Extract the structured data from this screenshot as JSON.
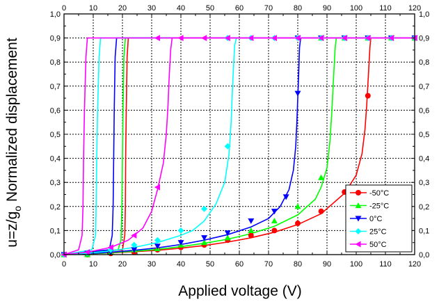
{
  "chart_data": {
    "type": "line",
    "title": "",
    "xlabel": "Applied voltage (V)",
    "ylabel": "u=z/g0 Normalized displacement",
    "ylabel_parts": {
      "prefix": "u=z/g",
      "subscript": "o",
      "suffix": " Normalized displacement"
    },
    "xlim": [
      0,
      120
    ],
    "ylim": [
      0,
      1.0
    ],
    "x_ticks": [
      "0",
      "10",
      "20",
      "30",
      "40",
      "50",
      "60",
      "70",
      "80",
      "90",
      "100",
      "110",
      "120"
    ],
    "y_ticks": [
      "0,0",
      "0,1",
      "0,2",
      "0,3",
      "0,4",
      "0,5",
      "0,6",
      "0,7",
      "0,8",
      "0,9",
      "1,0"
    ],
    "grid": true,
    "legend_position": "bottom-right",
    "series": [
      {
        "name": "-50°C",
        "color": "#ff0000",
        "marker": "circle",
        "forward": [
          [
            0,
            0
          ],
          [
            8,
            0.003
          ],
          [
            16,
            0.007
          ],
          [
            24,
            0.012
          ],
          [
            32,
            0.018
          ],
          [
            40,
            0.027
          ],
          [
            48,
            0.038
          ],
          [
            56,
            0.052
          ],
          [
            64,
            0.07
          ],
          [
            72,
            0.093
          ],
          [
            80,
            0.125
          ],
          [
            88,
            0.17
          ],
          [
            96,
            0.255
          ],
          [
            100,
            0.33
          ],
          [
            102,
            0.42
          ],
          [
            103,
            0.52
          ],
          [
            103.6,
            0.62
          ],
          [
            104.2,
            0.75
          ],
          [
            104.7,
            0.86
          ],
          [
            105,
            0.9
          ],
          [
            120,
            0.9
          ]
        ],
        "backward": [
          [
            120,
            0.9
          ],
          [
            22,
            0.9
          ],
          [
            21.6,
            0.82
          ],
          [
            21.3,
            0.6
          ],
          [
            21.1,
            0.4
          ],
          [
            21,
            0.2
          ],
          [
            20.8,
            0.08
          ],
          [
            20,
            0.02
          ],
          [
            0,
            0
          ]
        ],
        "markers": [
          [
            0,
            0
          ],
          [
            8,
            0
          ],
          [
            16,
            0.005
          ],
          [
            24,
            0.01
          ],
          [
            32,
            0.02
          ],
          [
            40,
            0.03
          ],
          [
            48,
            0.04
          ],
          [
            56,
            0.06
          ],
          [
            64,
            0.08
          ],
          [
            72,
            0.1
          ],
          [
            80,
            0.13
          ],
          [
            88,
            0.18
          ],
          [
            96,
            0.26
          ],
          [
            104,
            0.66
          ],
          [
            104,
            0.9
          ],
          [
            112,
            0.9
          ],
          [
            120,
            0.9
          ]
        ]
      },
      {
        "name": "-25°C",
        "color": "#00ff00",
        "marker": "triangle-up",
        "forward": [
          [
            0,
            0
          ],
          [
            8,
            0.003
          ],
          [
            16,
            0.008
          ],
          [
            24,
            0.014
          ],
          [
            32,
            0.022
          ],
          [
            40,
            0.033
          ],
          [
            48,
            0.047
          ],
          [
            56,
            0.064
          ],
          [
            64,
            0.087
          ],
          [
            72,
            0.118
          ],
          [
            80,
            0.165
          ],
          [
            86,
            0.23
          ],
          [
            88,
            0.28
          ],
          [
            90,
            0.36
          ],
          [
            91,
            0.47
          ],
          [
            91.7,
            0.6
          ],
          [
            92.3,
            0.75
          ],
          [
            92.8,
            0.86
          ],
          [
            93.2,
            0.9
          ],
          [
            120,
            0.9
          ]
        ],
        "backward": [
          [
            120,
            0.9
          ],
          [
            21,
            0.9
          ],
          [
            20.5,
            0.82
          ],
          [
            20.2,
            0.6
          ],
          [
            20,
            0.4
          ],
          [
            19.8,
            0.2
          ],
          [
            19.5,
            0.06
          ],
          [
            18.5,
            0.02
          ],
          [
            0,
            0
          ]
        ],
        "markers": [
          [
            0,
            0
          ],
          [
            8,
            0
          ],
          [
            16,
            0.01
          ],
          [
            24,
            0.02
          ],
          [
            32,
            0.025
          ],
          [
            40,
            0.04
          ],
          [
            48,
            0.05
          ],
          [
            56,
            0.07
          ],
          [
            64,
            0.1
          ],
          [
            72,
            0.14
          ],
          [
            80,
            0.2
          ],
          [
            88,
            0.32
          ],
          [
            88,
            0.9
          ],
          [
            96,
            0.9
          ],
          [
            104,
            0.9
          ],
          [
            112,
            0.9
          ],
          [
            120,
            0.9
          ]
        ]
      },
      {
        "name": "0°C",
        "color": "#0000ff",
        "marker": "triangle-down",
        "forward": [
          [
            0,
            0
          ],
          [
            8,
            0.004
          ],
          [
            16,
            0.01
          ],
          [
            24,
            0.018
          ],
          [
            32,
            0.028
          ],
          [
            40,
            0.042
          ],
          [
            48,
            0.06
          ],
          [
            56,
            0.083
          ],
          [
            64,
            0.115
          ],
          [
            70,
            0.15
          ],
          [
            74,
            0.2
          ],
          [
            77,
            0.27
          ],
          [
            78.5,
            0.35
          ],
          [
            79.3,
            0.45
          ],
          [
            79.7,
            0.55
          ],
          [
            80,
            0.65
          ],
          [
            80.3,
            0.75
          ],
          [
            80.6,
            0.86
          ],
          [
            81,
            0.9
          ],
          [
            120,
            0.9
          ]
        ],
        "backward": [
          [
            120,
            0.9
          ],
          [
            18,
            0.9
          ],
          [
            17.5,
            0.82
          ],
          [
            17.2,
            0.6
          ],
          [
            17,
            0.4
          ],
          [
            16.8,
            0.2
          ],
          [
            16.5,
            0.08
          ],
          [
            15.5,
            0.02
          ],
          [
            0,
            0
          ]
        ],
        "markers": [
          [
            0,
            0
          ],
          [
            8,
            0.005
          ],
          [
            16,
            0.01
          ],
          [
            24,
            0.02
          ],
          [
            32,
            0.035
          ],
          [
            40,
            0.05
          ],
          [
            48,
            0.07
          ],
          [
            56,
            0.09
          ],
          [
            64,
            0.14
          ],
          [
            72,
            0.18
          ],
          [
            76,
            0.24
          ],
          [
            80,
            0.67
          ],
          [
            80,
            0.9
          ],
          [
            88,
            0.9
          ],
          [
            96,
            0.9
          ],
          [
            104,
            0.9
          ],
          [
            112,
            0.9
          ],
          [
            120,
            0.9
          ]
        ]
      },
      {
        "name": "25°C",
        "color": "#00ffff",
        "marker": "diamond",
        "forward": [
          [
            0,
            0
          ],
          [
            8,
            0.006
          ],
          [
            16,
            0.015
          ],
          [
            24,
            0.03
          ],
          [
            32,
            0.05
          ],
          [
            40,
            0.08
          ],
          [
            44,
            0.1
          ],
          [
            48,
            0.14
          ],
          [
            52,
            0.21
          ],
          [
            55,
            0.3
          ],
          [
            56.5,
            0.42
          ],
          [
            57.2,
            0.55
          ],
          [
            57.6,
            0.67
          ],
          [
            58,
            0.78
          ],
          [
            58.4,
            0.87
          ],
          [
            59,
            0.9
          ],
          [
            120,
            0.9
          ]
        ],
        "backward": [
          [
            120,
            0.9
          ],
          [
            12.5,
            0.9
          ],
          [
            12,
            0.82
          ],
          [
            11.5,
            0.6
          ],
          [
            11.2,
            0.4
          ],
          [
            11,
            0.2
          ],
          [
            10.8,
            0.08
          ],
          [
            9.5,
            0.02
          ],
          [
            0,
            0
          ]
        ],
        "markers": [
          [
            0,
            0
          ],
          [
            8,
            0.005
          ],
          [
            16,
            0.02
          ],
          [
            24,
            0.04
          ],
          [
            32,
            0.06
          ],
          [
            40,
            0.1
          ],
          [
            48,
            0.19
          ],
          [
            56,
            0.45
          ],
          [
            56,
            0.9
          ],
          [
            64,
            0.9
          ],
          [
            72,
            0.9
          ],
          [
            80,
            0.9
          ],
          [
            88,
            0.9
          ],
          [
            96,
            0.9
          ],
          [
            104,
            0.9
          ],
          [
            112,
            0.9
          ],
          [
            120,
            0.9
          ]
        ]
      },
      {
        "name": "50°C",
        "color": "#ff00ff",
        "marker": "triangle-left",
        "forward": [
          [
            0,
            0
          ],
          [
            8,
            0.01
          ],
          [
            16,
            0.03
          ],
          [
            22,
            0.06
          ],
          [
            27,
            0.11
          ],
          [
            30,
            0.18
          ],
          [
            32,
            0.27
          ],
          [
            34,
            0.38
          ],
          [
            35,
            0.5
          ],
          [
            35.6,
            0.62
          ],
          [
            36,
            0.74
          ],
          [
            36.5,
            0.85
          ],
          [
            37,
            0.9
          ],
          [
            120,
            0.9
          ]
        ],
        "backward": [
          [
            120,
            0.9
          ],
          [
            8,
            0.9
          ],
          [
            7.5,
            0.82
          ],
          [
            7,
            0.6
          ],
          [
            6.7,
            0.4
          ],
          [
            6.5,
            0.2
          ],
          [
            6.2,
            0.08
          ],
          [
            5,
            0.02
          ],
          [
            0,
            0
          ]
        ],
        "markers": [
          [
            0,
            0
          ],
          [
            8,
            0.01
          ],
          [
            16,
            0.03
          ],
          [
            24,
            0.08
          ],
          [
            32,
            0.28
          ],
          [
            32,
            0.9
          ],
          [
            40,
            0.9
          ],
          [
            48,
            0.9
          ],
          [
            56,
            0.9
          ],
          [
            64,
            0.9
          ],
          [
            72,
            0.9
          ],
          [
            80,
            0.9
          ],
          [
            88,
            0.9
          ],
          [
            96,
            0.9
          ],
          [
            104,
            0.9
          ],
          [
            112,
            0.9
          ],
          [
            120,
            0.9
          ]
        ]
      }
    ]
  }
}
